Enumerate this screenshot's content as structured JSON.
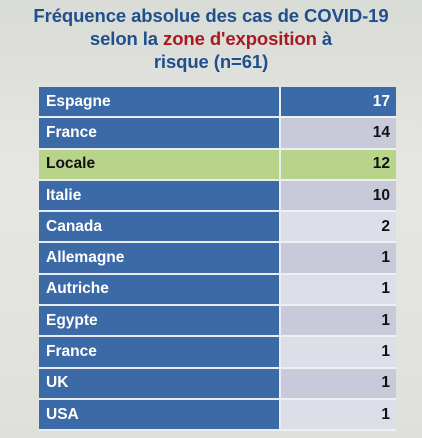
{
  "title": {
    "line1": "Fréquence absolue des cas de COVID-19",
    "line2_before": "selon la ",
    "line2_highlight": "zone d'exposition",
    "line2_after": " à",
    "line3": "risque (n=61)"
  },
  "rows": [
    {
      "country": "Espagne",
      "count": "17"
    },
    {
      "country": "France",
      "count": "14"
    },
    {
      "country": "Locale",
      "count": "12"
    },
    {
      "country": "Italie",
      "count": "10"
    },
    {
      "country": "Canada",
      "count": "2"
    },
    {
      "country": "Allemagne",
      "count": "1"
    },
    {
      "country": "Autriche",
      "count": "1"
    },
    {
      "country": "Egypte",
      "count": "1"
    },
    {
      "country": "France",
      "count": "1"
    },
    {
      "country": "UK",
      "count": "1"
    },
    {
      "country": "USA",
      "count": "1"
    }
  ],
  "colors": {
    "title": "#1f4f8c",
    "title_highlight": "#a81a20",
    "name_cell": "#3c6aa7",
    "value_cell": "#dcdee8",
    "highlight_row": "#b8d38a"
  }
}
